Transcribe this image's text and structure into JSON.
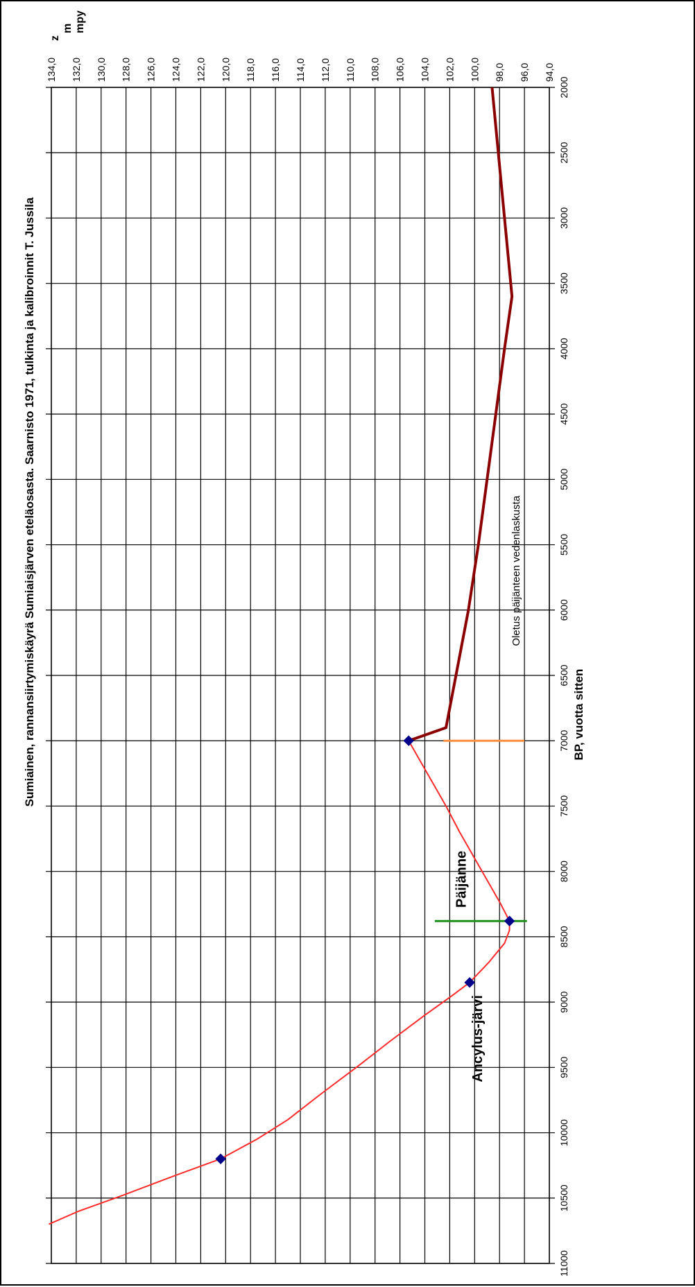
{
  "chart_data": {
    "type": "line",
    "title": "Sumiainen, rannansiirtymiskäyrä Sumiaisjärven eteläosasta. Saarnisto 1971, tulkinta ja kalibroinnit T. Jussila",
    "xlabel": "BP, vuotta sitten",
    "ylabel_lines": [
      "z",
      "m",
      "mpy"
    ],
    "xlim": [
      11000,
      2000
    ],
    "ylim": [
      94,
      134
    ],
    "x_ticks": [
      "2000",
      "2500",
      "3000",
      "3500",
      "4000",
      "4500",
      "5000",
      "5500",
      "6000",
      "6500",
      "7000",
      "7500",
      "8000",
      "8500",
      "9000",
      "9500",
      "10000",
      "10500",
      "11000"
    ],
    "y_ticks": [
      "94,0",
      "96,0",
      "98,0",
      "100,0",
      "102,0",
      "104,0",
      "106,0",
      "108,0",
      "110,0",
      "112,0",
      "114,0",
      "116,0",
      "118,0",
      "120,0",
      "122,0",
      "124,0",
      "126,0",
      "128,0",
      "130,0",
      "132,0",
      "134,0"
    ],
    "series": [
      {
        "name": "",
        "color": "#ff2a2a",
        "x": [
          10700,
          10600,
          10480,
          10350,
          10200,
          10050,
          9900,
          9700,
          9500,
          9300,
          9100,
          8950,
          8850,
          8700,
          8550,
          8450,
          8380,
          8250,
          8100,
          7900,
          7700,
          7500,
          7250,
          7000
        ],
        "y": [
          134.2,
          131.8,
          128.3,
          124.7,
          120.4,
          117.5,
          115.0,
          112.3,
          109.5,
          106.8,
          104.0,
          101.8,
          100.4,
          98.9,
          97.6,
          97.2,
          97.2,
          97.9,
          98.8,
          100.0,
          101.2,
          102.3,
          103.8,
          105.3
        ]
      },
      {
        "name": "",
        "color": "#8b0000",
        "x": [
          7000,
          6900,
          6500,
          6000,
          5500,
          5000,
          4500,
          4000,
          3600,
          3000,
          2500,
          2000
        ],
        "y": [
          105.3,
          102.3,
          101.5,
          100.5,
          99.7,
          99.0,
          98.3,
          97.6,
          97.0,
          97.6,
          98.1,
          98.6
        ]
      }
    ],
    "markers": [
      {
        "x": 10200,
        "y": 120.4
      },
      {
        "x": 8850,
        "y": 100.4
      },
      {
        "x": 8380,
        "y": 97.2
      },
      {
        "x": 7000,
        "y": 105.3
      }
    ],
    "vlines": [
      {
        "x": 8380,
        "y1": 95.8,
        "y2": 103.2,
        "color": "#1a8f1a"
      },
      {
        "x": 7000,
        "y1": 96.0,
        "y2": 102.5,
        "color": "#ff8c3a"
      }
    ],
    "annotations": [
      {
        "text": "Ancylus-järvi",
        "x": 9280,
        "y": 99.4,
        "bold": true
      },
      {
        "text": "Päijänne",
        "x": 8060,
        "y": 100.7,
        "bold": true
      },
      {
        "text": "Oletus päijänteen vedenlaskusta",
        "x": 5700,
        "y": 96.4,
        "bold": false
      }
    ],
    "grid": true
  }
}
